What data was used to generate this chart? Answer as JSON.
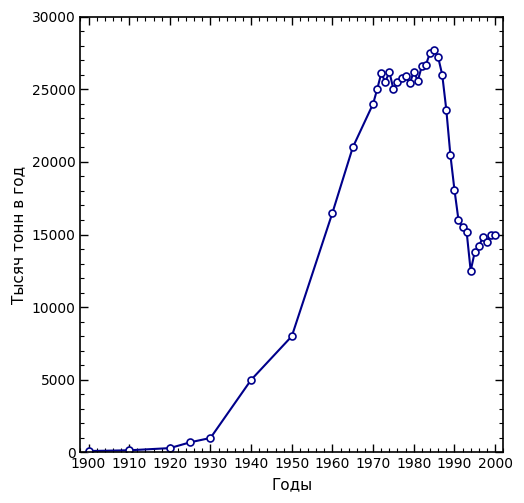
{
  "years": [
    1900,
    1910,
    1920,
    1925,
    1930,
    1940,
    1950,
    1960,
    1965,
    1970,
    1971,
    1972,
    1973,
    1974,
    1975,
    1976,
    1977,
    1978,
    1979,
    1980,
    1981,
    1982,
    1983,
    1984,
    1985,
    1986,
    1987,
    1988,
    1989,
    1990,
    1991,
    1992,
    1993,
    1994,
    1995,
    1996,
    1997,
    1998,
    1999,
    2000
  ],
  "values": [
    100,
    150,
    300,
    700,
    1000,
    5000,
    8000,
    16500,
    21000,
    24000,
    25000,
    26100,
    25500,
    26200,
    25000,
    25500,
    25800,
    25900,
    25400,
    26200,
    25600,
    26600,
    26700,
    27500,
    27700,
    27200,
    26000,
    23600,
    20500,
    18100,
    16000,
    15500,
    15200,
    12500,
    13800,
    14200,
    14800,
    14500,
    15000,
    15000
  ],
  "line_color": "#00008B",
  "marker_color": "#00008B",
  "marker": "o",
  "marker_size": 5,
  "marker_facecolor": "white",
  "xlabel": "Годы",
  "ylabel": "Тысяч тонн в год",
  "xlim": [
    1898,
    2002
  ],
  "ylim": [
    0,
    30000
  ],
  "xticks": [
    1900,
    1910,
    1920,
    1930,
    1940,
    1950,
    1960,
    1970,
    1980,
    1990,
    2000
  ],
  "yticks": [
    0,
    5000,
    10000,
    15000,
    20000,
    25000,
    30000
  ],
  "tick_fontsize": 10,
  "label_fontsize": 11,
  "background_color": "#ffffff",
  "figwidth": 5.24,
  "figheight": 5.03,
  "dpi": 100
}
